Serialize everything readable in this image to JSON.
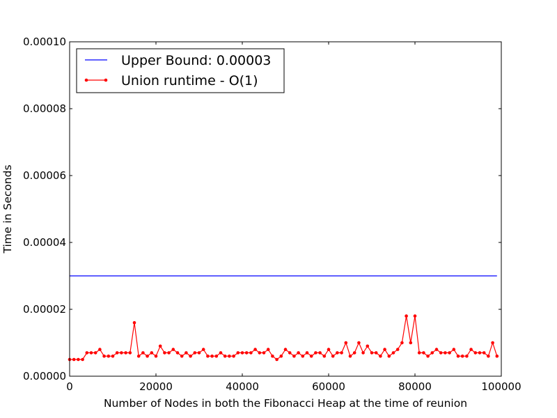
{
  "chart_data": {
    "type": "line",
    "title": "",
    "xlabel": "Number of Nodes in both the Fibonacci Heap at the time of reunion",
    "ylabel": "Time in Seconds",
    "xlim": [
      0,
      100000
    ],
    "ylim": [
      0,
      0.0001
    ],
    "xticks": [
      0,
      20000,
      40000,
      60000,
      80000,
      100000
    ],
    "xtick_labels": [
      "0",
      "20000",
      "40000",
      "60000",
      "80000",
      "100000"
    ],
    "yticks": [
      0,
      2e-05,
      4e-05,
      6e-05,
      8e-05,
      0.0001
    ],
    "ytick_labels": [
      "0.00000",
      "0.00002",
      "0.00004",
      "0.00006",
      "0.00008",
      "0.00010"
    ],
    "grid": false,
    "legend_position": "top-left",
    "series": [
      {
        "name": "Upper Bound: 0.00003",
        "color": "#0000ff",
        "marker": "none",
        "x": [
          0,
          99000
        ],
        "y": [
          3e-05,
          3e-05
        ]
      },
      {
        "name": "Union runtime - O(1)",
        "color": "#ff0000",
        "marker": "dot",
        "x": [
          0,
          1000,
          2000,
          3000,
          4000,
          5000,
          6000,
          7000,
          8000,
          9000,
          10000,
          11000,
          12000,
          13000,
          14000,
          15000,
          16000,
          17000,
          18000,
          19000,
          20000,
          21000,
          22000,
          23000,
          24000,
          25000,
          26000,
          27000,
          28000,
          29000,
          30000,
          31000,
          32000,
          33000,
          34000,
          35000,
          36000,
          37000,
          38000,
          39000,
          40000,
          41000,
          42000,
          43000,
          44000,
          45000,
          46000,
          47000,
          48000,
          49000,
          50000,
          51000,
          52000,
          53000,
          54000,
          55000,
          56000,
          57000,
          58000,
          59000,
          60000,
          61000,
          62000,
          63000,
          64000,
          65000,
          66000,
          67000,
          68000,
          69000,
          70000,
          71000,
          72000,
          73000,
          74000,
          75000,
          76000,
          77000,
          78000,
          79000,
          80000,
          81000,
          82000,
          83000,
          84000,
          85000,
          86000,
          87000,
          88000,
          89000,
          90000,
          91000,
          92000,
          93000,
          94000,
          95000,
          96000,
          97000,
          98000,
          99000
        ],
        "y": [
          5e-06,
          5e-06,
          5e-06,
          5e-06,
          7e-06,
          7e-06,
          7e-06,
          8e-06,
          6e-06,
          6e-06,
          6e-06,
          7e-06,
          7e-06,
          7e-06,
          7e-06,
          1.6e-05,
          6e-06,
          7e-06,
          6e-06,
          7e-06,
          6e-06,
          9e-06,
          7e-06,
          7e-06,
          8e-06,
          7e-06,
          6e-06,
          7e-06,
          6e-06,
          7e-06,
          7e-06,
          8e-06,
          6e-06,
          6e-06,
          6e-06,
          7e-06,
          6e-06,
          6e-06,
          6e-06,
          7e-06,
          7e-06,
          7e-06,
          7e-06,
          8e-06,
          7e-06,
          7e-06,
          8e-06,
          6e-06,
          5e-06,
          6e-06,
          8e-06,
          7e-06,
          6e-06,
          7e-06,
          6e-06,
          7e-06,
          6e-06,
          7e-06,
          7e-06,
          6e-06,
          8e-06,
          6e-06,
          7e-06,
          7e-06,
          1e-05,
          6e-06,
          7e-06,
          1e-05,
          7e-06,
          9e-06,
          7e-06,
          7e-06,
          6e-06,
          8e-06,
          6e-06,
          7e-06,
          8e-06,
          1e-05,
          1.8e-05,
          1e-05,
          1.8e-05,
          7e-06,
          7e-06,
          6e-06,
          7e-06,
          8e-06,
          7e-06,
          7e-06,
          7e-06,
          8e-06,
          6e-06,
          6e-06,
          6e-06,
          8e-06,
          7e-06,
          7e-06,
          7e-06,
          6e-06,
          1e-05,
          6e-06
        ]
      }
    ]
  }
}
